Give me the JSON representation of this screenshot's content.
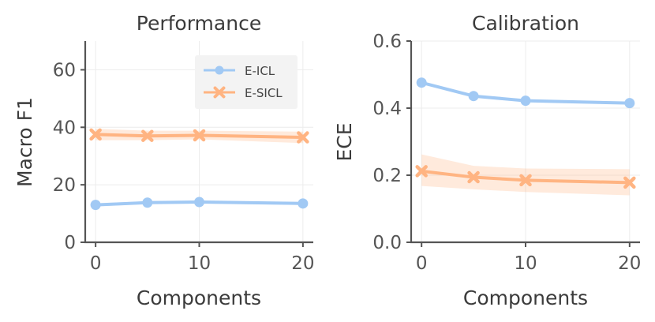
{
  "chart_data": [
    {
      "type": "line",
      "title": "Performance",
      "xlabel": "Components",
      "ylabel": "Macro F1",
      "x": [
        0,
        5,
        10,
        20
      ],
      "xlim": [
        -1,
        21
      ],
      "ylim": [
        0,
        70
      ],
      "xticks": [
        0,
        10,
        20
      ],
      "yticks": [
        0,
        20,
        40,
        60
      ],
      "grid": true,
      "legend": "top-right",
      "series": [
        {
          "name": "E-ICL",
          "color": "#a1c9f4",
          "marker": "circle",
          "values": [
            13.0,
            13.8,
            14.0,
            13.5
          ],
          "band_lower": [
            12.5,
            13.3,
            13.5,
            13.0
          ],
          "band_upper": [
            13.5,
            14.3,
            14.5,
            14.0
          ]
        },
        {
          "name": "E-SICL",
          "color": "#ffb482",
          "marker": "x",
          "values": [
            37.5,
            37.0,
            37.2,
            36.5
          ],
          "band_lower": [
            35.5,
            35.5,
            35.8,
            34.5
          ],
          "band_upper": [
            39.5,
            38.8,
            38.8,
            38.5
          ]
        }
      ]
    },
    {
      "type": "line",
      "title": "Calibration",
      "xlabel": "Components",
      "ylabel": "ECE",
      "x": [
        0,
        5,
        10,
        20
      ],
      "xlim": [
        -1,
        21
      ],
      "ylim": [
        0,
        0.6
      ],
      "xticks": [
        0,
        10,
        20
      ],
      "yticks": [
        0.0,
        0.2,
        0.4,
        0.6
      ],
      "ytick_labels": [
        "0.0",
        "0.2",
        "0.4",
        "0.6"
      ],
      "grid": true,
      "series": [
        {
          "name": "E-ICL",
          "color": "#a1c9f4",
          "marker": "circle",
          "values": [
            0.476,
            0.436,
            0.422,
            0.415
          ],
          "band_lower": [
            0.472,
            0.432,
            0.418,
            0.411
          ],
          "band_upper": [
            0.48,
            0.44,
            0.426,
            0.419
          ]
        },
        {
          "name": "E-SICL",
          "color": "#ffb482",
          "marker": "x",
          "values": [
            0.212,
            0.194,
            0.185,
            0.178
          ],
          "band_lower": [
            0.168,
            0.158,
            0.15,
            0.14
          ],
          "band_upper": [
            0.262,
            0.228,
            0.22,
            0.218
          ]
        }
      ]
    }
  ]
}
